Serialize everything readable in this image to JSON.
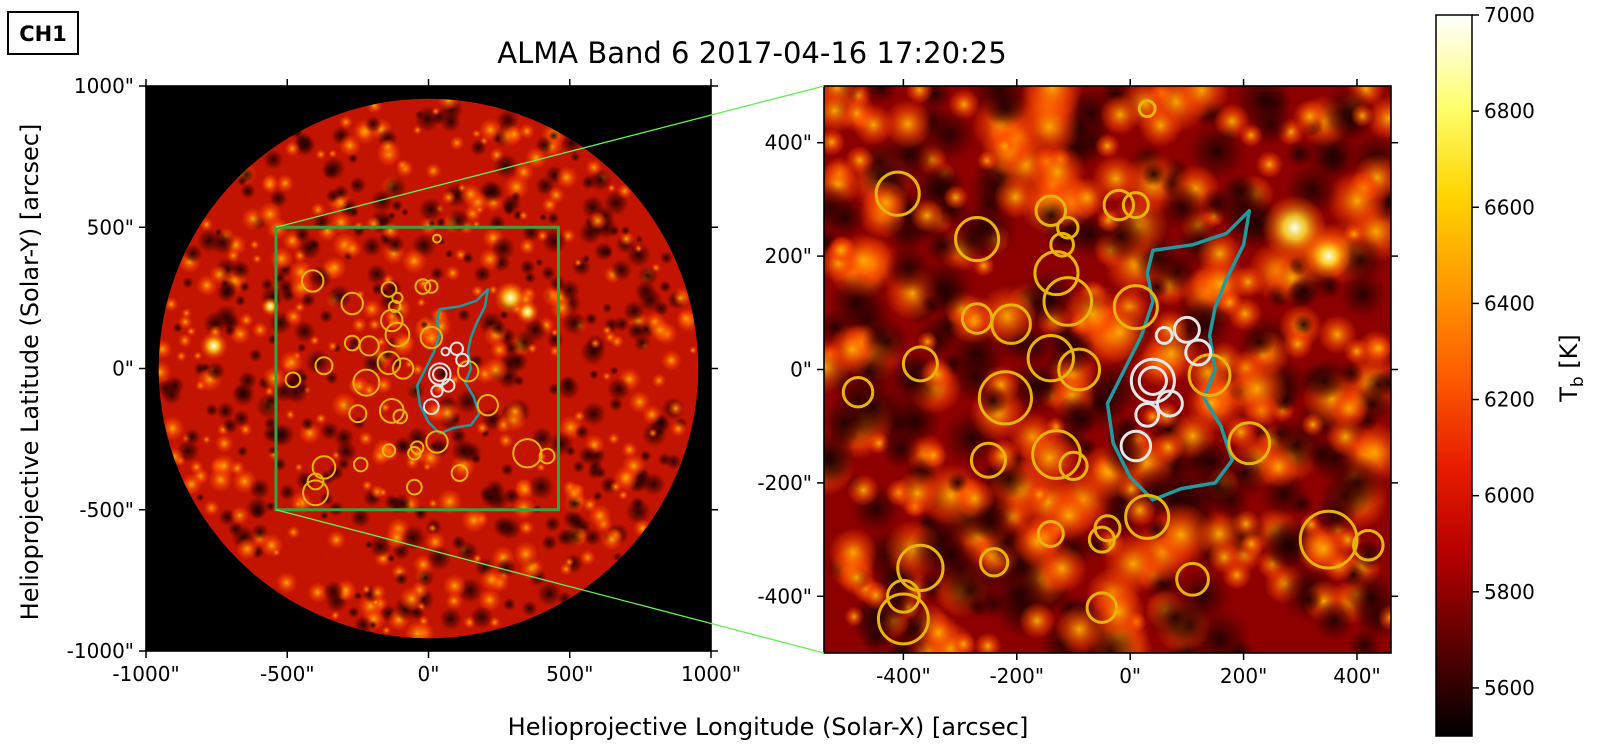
{
  "badge": "CH1",
  "title": "ALMA Band 6 2017-04-16 17:20:25",
  "xlabel": "Helioprojective Longitude (Solar-X) [arcsec]",
  "ylabel": "Helioprojective Latitude (Solar-Y) [arcsec]",
  "colorbar_label": "T_b [K]",
  "colorbar_label_main": "T",
  "colorbar_label_sub": "b",
  "colorbar_label_unit": " [K]",
  "chart_data": [
    {
      "type": "heatmap",
      "panel": "full-disk",
      "title": "ALMA Band 6 2017-04-16 17:20:25",
      "xlabel": "Helioprojective Longitude (Solar-X) [arcsec]",
      "ylabel": "Helioprojective Latitude (Solar-Y) [arcsec]",
      "xlim": [
        -1000,
        1000
      ],
      "ylim": [
        -1000,
        1000
      ],
      "x_ticks": [
        "-1000\"",
        "-500\"",
        "0\"",
        "500\"",
        "1000\""
      ],
      "y_ticks": [
        "1000\"",
        "500\"",
        "0\"",
        "-500\"",
        "-1000\""
      ],
      "solar_radius_arcsec": 955,
      "zoom_box": {
        "x": [
          -540,
          460
        ],
        "y": [
          -500,
          500
        ]
      },
      "bright_regions": [
        {
          "x": 290,
          "y": 250,
          "r": 60,
          "level": 0.95
        },
        {
          "x": 350,
          "y": 200,
          "r": 45,
          "level": 0.9
        },
        {
          "x": -760,
          "y": 80,
          "r": 70,
          "level": 0.7
        },
        {
          "x": -560,
          "y": 220,
          "r": 50,
          "level": 0.65
        }
      ],
      "coronal_hole_contour": [
        [
          40,
          210
        ],
        [
          110,
          220
        ],
        [
          170,
          240
        ],
        [
          210,
          280
        ],
        [
          200,
          220
        ],
        [
          170,
          160
        ],
        [
          150,
          110
        ],
        [
          140,
          60
        ],
        [
          150,
          0
        ],
        [
          130,
          -50
        ],
        [
          160,
          -100
        ],
        [
          180,
          -160
        ],
        [
          150,
          -200
        ],
        [
          90,
          -210
        ],
        [
          40,
          -230
        ],
        [
          0,
          -190
        ],
        [
          -30,
          -130
        ],
        [
          -40,
          -60
        ],
        [
          -10,
          0
        ],
        [
          20,
          60
        ],
        [
          40,
          120
        ],
        [
          30,
          170
        ]
      ],
      "yellow_circles": [
        {
          "x": -410,
          "y": 310,
          "r": 38
        },
        {
          "x": -270,
          "y": 230,
          "r": 38
        },
        {
          "x": -140,
          "y": 280,
          "r": 26
        },
        {
          "x": -110,
          "y": 250,
          "r": 18
        },
        {
          "x": -120,
          "y": 220,
          "r": 20
        },
        {
          "x": -130,
          "y": 170,
          "r": 38
        },
        {
          "x": -110,
          "y": 120,
          "r": 42
        },
        {
          "x": -20,
          "y": 290,
          "r": 26
        },
        {
          "x": 10,
          "y": 290,
          "r": 22
        },
        {
          "x": 10,
          "y": 110,
          "r": 38
        },
        {
          "x": -270,
          "y": 90,
          "r": 26
        },
        {
          "x": -210,
          "y": 80,
          "r": 34
        },
        {
          "x": -370,
          "y": 10,
          "r": 30
        },
        {
          "x": -140,
          "y": 20,
          "r": 40
        },
        {
          "x": -90,
          "y": 0,
          "r": 36
        },
        {
          "x": -220,
          "y": -50,
          "r": 46
        },
        {
          "x": -480,
          "y": -40,
          "r": 26
        },
        {
          "x": 140,
          "y": -10,
          "r": 36
        },
        {
          "x": -250,
          "y": -160,
          "r": 30
        },
        {
          "x": -130,
          "y": -150,
          "r": 42
        },
        {
          "x": -100,
          "y": -170,
          "r": 24
        },
        {
          "x": 210,
          "y": -130,
          "r": 36
        },
        {
          "x": -140,
          "y": -290,
          "r": 22
        },
        {
          "x": -40,
          "y": -280,
          "r": 22
        },
        {
          "x": -50,
          "y": -300,
          "r": 22
        },
        {
          "x": 30,
          "y": -260,
          "r": 38
        },
        {
          "x": -240,
          "y": -340,
          "r": 24
        },
        {
          "x": -370,
          "y": -350,
          "r": 40
        },
        {
          "x": -400,
          "y": -400,
          "r": 28
        },
        {
          "x": -400,
          "y": -440,
          "r": 44
        },
        {
          "x": -50,
          "y": -420,
          "r": 26
        },
        {
          "x": 110,
          "y": -370,
          "r": 28
        },
        {
          "x": 350,
          "y": -300,
          "r": 50
        },
        {
          "x": 420,
          "y": -310,
          "r": 26
        },
        {
          "x": 30,
          "y": 460,
          "r": 14
        }
      ],
      "white_circles": [
        {
          "x": 60,
          "y": 60,
          "r": 14
        },
        {
          "x": 100,
          "y": 70,
          "r": 22
        },
        {
          "x": 120,
          "y": 30,
          "r": 22
        },
        {
          "x": 40,
          "y": -20,
          "r": 38
        },
        {
          "x": 40,
          "y": -20,
          "r": 24
        },
        {
          "x": 70,
          "y": -60,
          "r": 22
        },
        {
          "x": 30,
          "y": -80,
          "r": 20
        },
        {
          "x": 10,
          "y": -135,
          "r": 26
        }
      ]
    },
    {
      "type": "heatmap",
      "panel": "zoom",
      "xlim": [
        -540,
        460
      ],
      "ylim": [
        -500,
        500
      ],
      "x_ticks": [
        "-400\"",
        "-200\"",
        "0\"",
        "200\"",
        "400\""
      ],
      "y_ticks": [
        "400\"",
        "200\"",
        "0\"",
        "-200\"",
        "-400\""
      ]
    }
  ],
  "colorbar": {
    "min": 5500,
    "max": 7000,
    "ticks": [
      "7000",
      "6800",
      "6600",
      "6400",
      "6200",
      "6000",
      "5800",
      "5600"
    ],
    "colors": [
      "#000000",
      "#5a0000",
      "#b40000",
      "#e81d00",
      "#ff5c00",
      "#ff9a00",
      "#ffd500",
      "#ffff70",
      "#ffffff"
    ]
  },
  "colors": {
    "contour": "#1f9aa0",
    "yellow_circle": "#e8b40c",
    "white_circle": "#e6e6e6",
    "box": "#3aa040",
    "connector": "#66ee55"
  }
}
